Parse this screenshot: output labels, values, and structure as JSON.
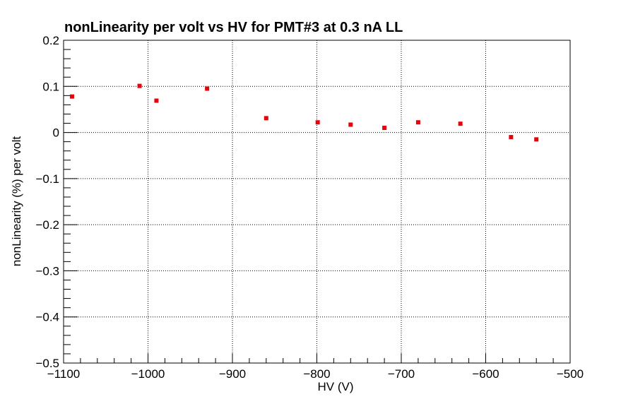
{
  "chart_data": {
    "type": "scatter",
    "title": "nonLinearity per volt vs HV for PMT#3 at 0.3 nA LL",
    "xlabel": "HV (V)",
    "ylabel": "nonLinearity (%) per volt",
    "xlim": [
      -1100,
      -500
    ],
    "ylim": [
      -0.5,
      0.2
    ],
    "grid": true,
    "x_ticks": [
      -1100,
      -1000,
      -900,
      -800,
      -700,
      -600,
      -500
    ],
    "x_tick_labels": [
      "−1100",
      "−1000",
      "−900",
      "−800",
      "−700",
      "−600",
      "−500"
    ],
    "y_ticks": [
      0.2,
      0.1,
      0,
      -0.1,
      -0.2,
      -0.3,
      -0.4,
      -0.5
    ],
    "y_tick_labels": [
      "0.2",
      "0.1",
      "0",
      "−0.1",
      "−0.2",
      "−0.3",
      "−0.4",
      "−0.5"
    ],
    "marker_color": "#e8000b",
    "points": [
      {
        "x": -1090,
        "y": 0.078
      },
      {
        "x": -1010,
        "y": 0.101
      },
      {
        "x": -990,
        "y": 0.069
      },
      {
        "x": -930,
        "y": 0.095
      },
      {
        "x": -860,
        "y": 0.031
      },
      {
        "x": -799,
        "y": 0.022
      },
      {
        "x": -760,
        "y": 0.017
      },
      {
        "x": -720,
        "y": 0.01
      },
      {
        "x": -680,
        "y": 0.022
      },
      {
        "x": -630,
        "y": 0.019
      },
      {
        "x": -570,
        "y": -0.01
      },
      {
        "x": -540,
        "y": -0.015
      }
    ]
  }
}
